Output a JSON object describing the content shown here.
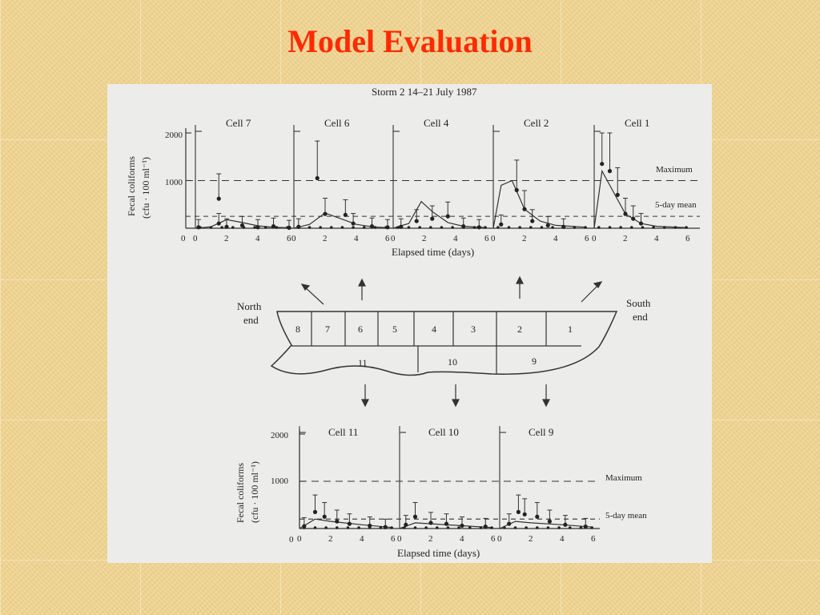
{
  "slide": {
    "title": "Model Evaluation"
  },
  "chart_data": [
    {
      "type": "line",
      "title": "Storm 2  14–21 July 1987",
      "xlabel": "Elapsed time (days)",
      "ylabel_line1": "Fecal coliforms",
      "ylabel_line2": "(cfu · 100 ml⁻¹)",
      "ylim": [
        0,
        2000
      ],
      "yticks": [
        "2000",
        "1000",
        "0"
      ],
      "reference_lines": [
        "Maximum",
        "5-day mean"
      ],
      "panels": [
        {
          "name": "Cell 7",
          "xticks": [
            "0",
            "2",
            "4",
            "6"
          ],
          "observed": [
            [
              0.2,
              20
            ],
            [
              1.5,
              620
            ],
            [
              1.5,
              100
            ],
            [
              2.0,
              30
            ],
            [
              3.0,
              60
            ],
            [
              4.0,
              20
            ],
            [
              5.0,
              40
            ],
            [
              6.0,
              10
            ]
          ],
          "model": [
            [
              0,
              0
            ],
            [
              1,
              30
            ],
            [
              2,
              180
            ],
            [
              3,
              120
            ],
            [
              4,
              50
            ],
            [
              5,
              20
            ],
            [
              6,
              10
            ]
          ]
        },
        {
          "name": "Cell 6",
          "xticks": [
            "0",
            "2",
            "4",
            "6"
          ],
          "observed": [
            [
              0.3,
              30
            ],
            [
              1.5,
              1050
            ],
            [
              2.0,
              300
            ],
            [
              3.3,
              280
            ],
            [
              3.8,
              100
            ],
            [
              5.0,
              40
            ],
            [
              6.0,
              20
            ]
          ],
          "model": [
            [
              0,
              0
            ],
            [
              1,
              80
            ],
            [
              2,
              320
            ],
            [
              3,
              200
            ],
            [
              4,
              80
            ],
            [
              5,
              30
            ],
            [
              6,
              10
            ]
          ]
        },
        {
          "name": "Cell 4",
          "xticks": [
            "0",
            "2",
            "4",
            "6"
          ],
          "observed": [
            [
              0.5,
              30
            ],
            [
              1.5,
              150
            ],
            [
              2.5,
              200
            ],
            [
              3.5,
              250
            ],
            [
              4.5,
              40
            ],
            [
              5.5,
              20
            ]
          ],
          "model": [
            [
              0,
              0
            ],
            [
              1,
              100
            ],
            [
              1.8,
              560
            ],
            [
              2.5,
              350
            ],
            [
              3.5,
              120
            ],
            [
              4.5,
              40
            ],
            [
              6,
              10
            ]
          ]
        },
        {
          "name": "Cell 2",
          "xticks": [
            "0",
            "2",
            "4",
            "6"
          ],
          "observed": [
            [
              0.5,
              80
            ],
            [
              1.5,
              800
            ],
            [
              2.0,
              400
            ],
            [
              2.5,
              150
            ],
            [
              3.5,
              60
            ],
            [
              4.5,
              30
            ]
          ],
          "model": [
            [
              0,
              0
            ],
            [
              0.5,
              900
            ],
            [
              1.2,
              1000
            ],
            [
              2,
              400
            ],
            [
              3,
              150
            ],
            [
              4,
              60
            ],
            [
              6,
              20
            ]
          ]
        },
        {
          "name": "Cell 1",
          "xticks": [
            "0",
            "2",
            "4",
            "6"
          ],
          "observed": [
            [
              0.5,
              1350
            ],
            [
              1.0,
              1200
            ],
            [
              1.5,
              700
            ],
            [
              2.0,
              300
            ],
            [
              2.5,
              200
            ],
            [
              3.0,
              100
            ]
          ],
          "model": [
            [
              0,
              0
            ],
            [
              0.5,
              1200
            ],
            [
              1.0,
              900
            ],
            [
              2,
              300
            ],
            [
              3,
              100
            ],
            [
              4,
              40
            ],
            [
              6,
              10
            ]
          ]
        }
      ]
    },
    {
      "type": "line",
      "xlabel": "Elapsed time (days)",
      "ylabel_line1": "Fecal coliforms",
      "ylabel_line2": "(cfu · 100 ml⁻¹)",
      "ylim": [
        0,
        2000
      ],
      "yticks": [
        "2000",
        "1000",
        "0"
      ],
      "reference_lines": [
        "Maximum",
        "5-day mean"
      ],
      "panels": [
        {
          "name": "Cell 11",
          "xticks": [
            "0",
            "2",
            "4",
            "6"
          ],
          "observed": [
            [
              0.3,
              50
            ],
            [
              1.0,
              350
            ],
            [
              1.6,
              250
            ],
            [
              2.4,
              150
            ],
            [
              3.2,
              100
            ],
            [
              4.5,
              60
            ],
            [
              5.5,
              30
            ]
          ],
          "model": [
            [
              0,
              0
            ],
            [
              1,
              200
            ],
            [
              2,
              150
            ],
            [
              4,
              80
            ],
            [
              6,
              20
            ]
          ]
        },
        {
          "name": "Cell 10",
          "xticks": [
            "0",
            "2",
            "4",
            "6"
          ],
          "observed": [
            [
              0.4,
              80
            ],
            [
              1.0,
              250
            ],
            [
              2.0,
              120
            ],
            [
              3.0,
              100
            ],
            [
              4.0,
              60
            ],
            [
              5.5,
              40
            ]
          ],
          "model": [
            [
              0,
              0
            ],
            [
              1,
              120
            ],
            [
              2,
              100
            ],
            [
              4,
              60
            ],
            [
              6,
              20
            ]
          ]
        },
        {
          "name": "Cell 9",
          "xticks": [
            "0",
            "2",
            "4",
            "6"
          ],
          "observed": [
            [
              0.6,
              100
            ],
            [
              1.2,
              350
            ],
            [
              1.6,
              300
            ],
            [
              2.4,
              250
            ],
            [
              3.2,
              150
            ],
            [
              4.2,
              80
            ],
            [
              5.5,
              40
            ]
          ],
          "model": [
            [
              0,
              0
            ],
            [
              1,
              150
            ],
            [
              2,
              120
            ],
            [
              4,
              80
            ],
            [
              6,
              30
            ]
          ]
        }
      ]
    }
  ],
  "diagram": {
    "north_end_line1": "North",
    "north_end_line2": "end",
    "south_end_line1": "South",
    "south_end_line2": "end",
    "top_cells": [
      "8",
      "7",
      "6",
      "5",
      "4",
      "3",
      "2",
      "1"
    ],
    "bottom_cells": [
      "11",
      "10",
      "9"
    ]
  }
}
